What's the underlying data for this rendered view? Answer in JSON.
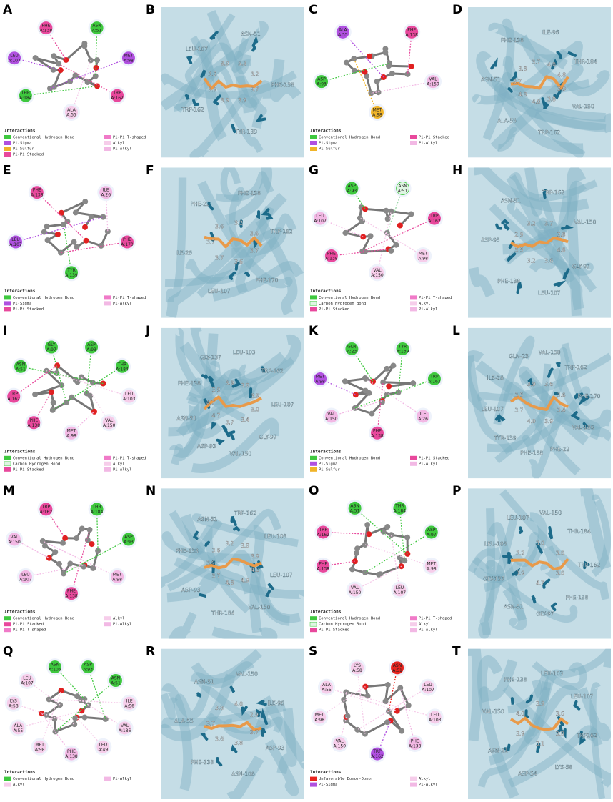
{
  "panels": [
    {
      "letter": "A",
      "residues": [
        {
          "name": "ASN",
          "chain": "A:51",
          "color": "#3ec83e"
        },
        {
          "name": "MET",
          "chain": "A:98",
          "color": "#b050e0"
        },
        {
          "name": "TRP",
          "chain": "A:162",
          "color": "#e8489c"
        },
        {
          "name": "ALA",
          "chain": "A:55",
          "color": "#f6cdea"
        },
        {
          "name": "THR",
          "chain": "A:184",
          "color": "#3ec83e"
        },
        {
          "name": "LEU",
          "chain": "A:107",
          "color": "#b050e0"
        },
        {
          "name": "PHE",
          "chain": "A:138",
          "color": "#e8489c"
        }
      ],
      "legend_title": "Interactions",
      "interactions": [
        {
          "label": "Conventional Hydrogen Bond",
          "color": "#3ec83e"
        },
        {
          "label": "Pi-Sigma",
          "color": "#b050e0"
        },
        {
          "label": "Pi-Sulfur",
          "color": "#f0b428"
        },
        {
          "label": "Pi-Pi Stacked",
          "color": "#e8489c"
        },
        {
          "label": "Pi-Pi T-shaped",
          "color": "#f07ac8"
        },
        {
          "label": "Alkyl",
          "color": "#f6cdea"
        },
        {
          "label": "Pi-Alkyl",
          "color": "#f2b8e4"
        }
      ]
    },
    {
      "letter": "B",
      "residue_labels": [
        "ASN-51",
        "PHE-138",
        "TYR-139",
        "TRP-162",
        "LEU-107"
      ],
      "distances": [
        "3.7",
        "3.9",
        "3.9",
        "3.9",
        "3.7",
        "3.9",
        "5.3",
        "3.2"
      ]
    },
    {
      "letter": "C",
      "residues": [
        {
          "name": "PHE",
          "chain": "A:138",
          "color": "#e8489c"
        },
        {
          "name": "VAL",
          "chain": "A:150",
          "color": "#f2b8e4"
        },
        {
          "name": "MET",
          "chain": "A:98",
          "color": "#f0b428"
        },
        {
          "name": "ASP",
          "chain": "A:93",
          "color": "#3ec83e"
        },
        {
          "name": "ALA",
          "chain": "A:55",
          "color": "#b050e0"
        }
      ],
      "legend_title": "Interactions",
      "interactions": [
        {
          "label": "Conventional Hydrogen Bond",
          "color": "#3ec83e"
        },
        {
          "label": "Pi-Sigma",
          "color": "#b050e0"
        },
        {
          "label": "Pi-Sulfur",
          "color": "#f0b428"
        },
        {
          "label": "Pi-Pi Stacked",
          "color": "#e8489c"
        },
        {
          "label": "Pi-Alkyl",
          "color": "#f2b8e4"
        }
      ]
    },
    {
      "letter": "D",
      "residue_labels": [
        "ILE-96",
        "THR-184",
        "VAL-150",
        "TRP-162",
        "ALA-55",
        "ASN-51",
        "PHE-138"
      ],
      "distances": [
        "3.9",
        "3.8",
        "4.0",
        "4.8",
        "3.7",
        "3.8",
        "3.7",
        "4.0",
        "4.8"
      ]
    },
    {
      "letter": "E",
      "residues": [
        {
          "name": "ILE",
          "chain": "A:26",
          "color": "#f2b8e4"
        },
        {
          "name": "PHE",
          "chain": "A:170",
          "color": "#e8489c"
        },
        {
          "name": "TYR",
          "chain": "A:139",
          "color": "#3ec83e"
        },
        {
          "name": "LEU",
          "chain": "A:107",
          "color": "#b050e0"
        },
        {
          "name": "PHE",
          "chain": "A:138",
          "color": "#e8489c"
        }
      ],
      "legend_title": "Interactions",
      "interactions": [
        {
          "label": "Conventional Hydrogen Bond",
          "color": "#3ec83e"
        },
        {
          "label": "Pi-Sigma",
          "color": "#b050e0"
        },
        {
          "label": "Pi-Pi Stacked",
          "color": "#e8489c"
        },
        {
          "label": "Pi-Pi T-shaped",
          "color": "#f07ac8"
        },
        {
          "label": "Pi-Alkyl",
          "color": "#f2b8e4"
        }
      ]
    },
    {
      "letter": "F",
      "residue_labels": [
        "PHE-138",
        "TRP-162",
        "PHE-170",
        "LEU-107",
        "ILE-26",
        "PHE-22"
      ],
      "distances": [
        "3.7",
        "3.6",
        "3.7",
        "3.7",
        "3.6",
        "3.2",
        "3.6"
      ]
    },
    {
      "letter": "G",
      "residues": [
        {
          "name": "ASN",
          "chain": "A:51",
          "color": "#dff5e3"
        },
        {
          "name": "TRP",
          "chain": "A:162",
          "color": "#e8489c"
        },
        {
          "name": "MET",
          "chain": "A:98",
          "color": "#f6cdea"
        },
        {
          "name": "VAL",
          "chain": "A:150",
          "color": "#f6cdea"
        },
        {
          "name": "PHE",
          "chain": "A:138",
          "color": "#e8489c"
        },
        {
          "name": "LEU",
          "chain": "A:107",
          "color": "#f2b8e4"
        },
        {
          "name": "ASP",
          "chain": "A:93",
          "color": "#3ec83e"
        }
      ],
      "legend_title": "Interactions",
      "interactions": [
        {
          "label": "Conventional Hydrogen Bond",
          "color": "#3ec83e"
        },
        {
          "label": "Carbon Hydrogen Bond",
          "color": "#dff5e3"
        },
        {
          "label": "Pi-Pi Stacked",
          "color": "#e8489c"
        },
        {
          "label": "Pi-Pi T-shaped",
          "color": "#f07ac8"
        },
        {
          "label": "Alkyl",
          "color": "#f6cdea"
        },
        {
          "label": "Pi-Alkyl",
          "color": "#f2b8e4"
        }
      ]
    },
    {
      "letter": "H",
      "residue_labels": [
        "TRP-162",
        "VAL-150",
        "GLY-97",
        "LEU-107",
        "PHE-138",
        "ASP-93",
        "ASN-51"
      ],
      "distances": [
        "4.8",
        "3.6",
        "3.2",
        "3.5",
        "2.9",
        "3.2",
        "3.7",
        "3.8"
      ]
    },
    {
      "letter": "I",
      "residues": [
        {
          "name": "ASP",
          "chain": "A:93",
          "color": "#3ec83e"
        },
        {
          "name": "THR",
          "chain": "A:184",
          "color": "#3ec83e"
        },
        {
          "name": "LEU",
          "chain": "A:103",
          "color": "#f6cdea"
        },
        {
          "name": "VAL",
          "chain": "A:150",
          "color": "#f6cdea"
        },
        {
          "name": "MET",
          "chain": "A:98",
          "color": "#f2b8e4"
        },
        {
          "name": "PHE",
          "chain": "A:138",
          "color": "#e8489c"
        },
        {
          "name": "TRP",
          "chain": "A:162",
          "color": "#e8489c"
        },
        {
          "name": "ASN",
          "chain": "A:51",
          "color": "#3ec83e"
        },
        {
          "name": "GLY",
          "chain": "A:97",
          "color": "#3ec83e"
        }
      ],
      "legend_title": "Interactions",
      "interactions": [
        {
          "label": "Conventional Hydrogen Bond",
          "color": "#3ec83e"
        },
        {
          "label": "Carbon Hydrogen Bond",
          "color": "#dff5e3"
        },
        {
          "label": "Pi-Pi Stacked",
          "color": "#e8489c"
        },
        {
          "label": "Pi-Pi T-shaped",
          "color": "#f07ac8"
        },
        {
          "label": "Alkyl",
          "color": "#f6cdea"
        },
        {
          "label": "Pi-Alkyl",
          "color": "#f2b8e4"
        }
      ]
    },
    {
      "letter": "J",
      "residue_labels": [
        "LEU-103",
        "TRP-162",
        "LEU-107",
        "GLY-97",
        "VAL-150",
        "ASP-93",
        "ASN-51",
        "PHE-138",
        "GLY-137"
      ],
      "distances": [
        "3.0",
        "3.4",
        "3.7",
        "4.7",
        "4.7",
        "3.9",
        "3.9",
        "3.8",
        "3.9"
      ]
    },
    {
      "letter": "K",
      "residues": [
        {
          "name": "TYR",
          "chain": "A:139",
          "color": "#3ec83e"
        },
        {
          "name": "TRP",
          "chain": "A:162",
          "color": "#3ec83e"
        },
        {
          "name": "ILE",
          "chain": "A:26",
          "color": "#f2b8e4"
        },
        {
          "name": "PHE",
          "chain": "A:138",
          "color": "#e8489c"
        },
        {
          "name": "VAL",
          "chain": "A:150",
          "color": "#f2b8e4"
        },
        {
          "name": "MET",
          "chain": "A:98",
          "color": "#b050e0"
        },
        {
          "name": "GLN",
          "chain": "A:23",
          "color": "#3ec83e"
        }
      ],
      "legend_title": "Interactions",
      "interactions": [
        {
          "label": "Conventional Hydrogen Bond",
          "color": "#3ec83e"
        },
        {
          "label": "Pi-Sigma",
          "color": "#b050e0"
        },
        {
          "label": "Pi-Sulfur",
          "color": "#f0b428"
        },
        {
          "label": "Pi-Pi Stacked",
          "color": "#e8489c"
        },
        {
          "label": "Pi-Alkyl",
          "color": "#f2b8e4"
        }
      ]
    },
    {
      "letter": "L",
      "residue_labels": [
        "VAL-150",
        "TRP-162",
        "PHE-170",
        "VAL-186",
        "PHE-22",
        "PHE-138",
        "TYR-139",
        "LEU-107",
        "ILE-26",
        "GLN-23"
      ],
      "distances": [
        "3.4",
        "3.9",
        "4.0",
        "3.7",
        "3.5",
        "3.9",
        "3.6",
        "3.6"
      ]
    },
    {
      "letter": "M",
      "residues": [
        {
          "name": "THR",
          "chain": "A:184",
          "color": "#3ec83e"
        },
        {
          "name": "ASP",
          "chain": "A:93",
          "color": "#3ec83e"
        },
        {
          "name": "MET",
          "chain": "A:98",
          "color": "#f2b8e4"
        },
        {
          "name": "PHE",
          "chain": "A:138",
          "color": "#e8489c"
        },
        {
          "name": "LEU",
          "chain": "A:107",
          "color": "#f2b8e4"
        },
        {
          "name": "VAL",
          "chain": "A:150",
          "color": "#f2b8e4"
        },
        {
          "name": "TRP",
          "chain": "A:162",
          "color": "#e8489c"
        }
      ],
      "legend_title": "Interactions",
      "interactions": [
        {
          "label": "Conventional Hydrogen Bond",
          "color": "#3ec83e"
        },
        {
          "label": "Pi-Pi Stacked",
          "color": "#e8489c"
        },
        {
          "label": "Pi-Pi T-shaped",
          "color": "#f07ac8"
        },
        {
          "label": "Alkyl",
          "color": "#f6cdea"
        },
        {
          "label": "Pi-Alkyl",
          "color": "#f2b8e4"
        }
      ]
    },
    {
      "letter": "N",
      "residue_labels": [
        "TRP-162",
        "LEU-103",
        "LEU-107",
        "VAL-150",
        "THR-184",
        "ASP-93",
        "PHE-138",
        "ASN-51"
      ],
      "distances": [
        "4.0",
        "4.9",
        "4.8",
        "3.7",
        "3.9",
        "3.6",
        "3.2",
        "3.8",
        "3.9"
      ]
    },
    {
      "letter": "O",
      "residues": [
        {
          "name": "THR",
          "chain": "A:184",
          "color": "#3ec83e"
        },
        {
          "name": "ASP",
          "chain": "A:97",
          "color": "#3ec83e"
        },
        {
          "name": "MET",
          "chain": "A:98",
          "color": "#f6cdea"
        },
        {
          "name": "LEU",
          "chain": "A:107",
          "color": "#f6cdea"
        },
        {
          "name": "VAL",
          "chain": "A:150",
          "color": "#f6cdea"
        },
        {
          "name": "PHE",
          "chain": "A:138",
          "color": "#e8489c"
        },
        {
          "name": "TRP",
          "chain": "A:162",
          "color": "#e8489c"
        },
        {
          "name": "ASN",
          "chain": "A:51",
          "color": "#3ec83e"
        }
      ],
      "legend_title": "Interactions",
      "interactions": [
        {
          "label": "Conventional Hydrogen Bond",
          "color": "#3ec83e"
        },
        {
          "label": "Carbon Hydrogen Bond",
          "color": "#dff5e3"
        },
        {
          "label": "Pi-Pi Stacked",
          "color": "#e8489c"
        },
        {
          "label": "Pi-Pi T-shaped",
          "color": "#f07ac8"
        },
        {
          "label": "Alkyl",
          "color": "#f6cdea"
        },
        {
          "label": "Pi-Alkyl",
          "color": "#f2b8e4"
        }
      ]
    },
    {
      "letter": "P",
      "residue_labels": [
        "VAL-150",
        "THR-184",
        "TRP-162",
        "PHE-138",
        "GLY-97",
        "ASN-51",
        "GLY-137",
        "LEU-103",
        "LEU-107"
      ],
      "distances": [
        "3.6",
        "4.7",
        "3.9",
        "3.2",
        "3.0",
        "3.6"
      ]
    },
    {
      "letter": "Q",
      "residues": [
        {
          "name": "ASP",
          "chain": "A:93",
          "color": "#3ec83e"
        },
        {
          "name": "ASN",
          "chain": "A:51",
          "color": "#3ec83e"
        },
        {
          "name": "ILE",
          "chain": "A:96",
          "color": "#f6cdea"
        },
        {
          "name": "VAL",
          "chain": "A:186",
          "color": "#f6cdea"
        },
        {
          "name": "LEU",
          "chain": "A:49",
          "color": "#f6cdea"
        },
        {
          "name": "PHE",
          "chain": "A:138",
          "color": "#f2b8e4"
        },
        {
          "name": "MET",
          "chain": "A:98",
          "color": "#f6cdea"
        },
        {
          "name": "ALA",
          "chain": "A:55",
          "color": "#f6cdea"
        },
        {
          "name": "LYS",
          "chain": "A:58",
          "color": "#f6cdea"
        },
        {
          "name": "LEU",
          "chain": "A:107",
          "color": "#f6cdea"
        },
        {
          "name": "ASN",
          "chain": "A:106",
          "color": "#3ec83e"
        }
      ],
      "legend_title": "Interactions",
      "interactions": [
        {
          "label": "Conventional Hydrogen Bond",
          "color": "#3ec83e"
        },
        {
          "label": "Alkyl",
          "color": "#f6cdea"
        },
        {
          "label": "Pi-Alkyl",
          "color": "#f2b8e4"
        }
      ]
    },
    {
      "letter": "R",
      "residue_labels": [
        "VAL-150",
        "ILE-96",
        "ASP-93",
        "ASN-106",
        "PHE-138",
        "ALA-55",
        "ASN-51"
      ],
      "distances": [
        "3.7",
        "3.8",
        "3.6",
        "3.7",
        "3.8",
        "4.0",
        "2.9"
      ]
    },
    {
      "letter": "S",
      "residues": [
        {
          "name": "ASN",
          "chain": "A:51",
          "color": "#e8231e"
        },
        {
          "name": "LEU",
          "chain": "A:107",
          "color": "#f6cdea"
        },
        {
          "name": "LEU",
          "chain": "A:103",
          "color": "#f6cdea"
        },
        {
          "name": "PHE",
          "chain": "A:138",
          "color": "#f2b8e4"
        },
        {
          "name": "TRP",
          "chain": "A:162",
          "color": "#b050e0"
        },
        {
          "name": "VAL",
          "chain": "A:150",
          "color": "#f6cdea"
        },
        {
          "name": "MET",
          "chain": "A:98",
          "color": "#f6cdea"
        },
        {
          "name": "ALA",
          "chain": "A:55",
          "color": "#f6cdea"
        },
        {
          "name": "LYS",
          "chain": "A:58",
          "color": "#f6cdea"
        }
      ],
      "legend_title": "Interactions",
      "interactions": [
        {
          "label": "Unfavorable Donor-Donor",
          "color": "#e8231e"
        },
        {
          "label": "Pi-Sigma",
          "color": "#b050e0"
        },
        {
          "label": "Alkyl",
          "color": "#f6cdea"
        },
        {
          "label": "Pi-Alkyl",
          "color": "#f2b8e4"
        }
      ]
    },
    {
      "letter": "T",
      "residue_labels": [
        "LEU-103",
        "LEU-107",
        "TRP162",
        "LYS-58",
        "ASP-54",
        "ASN-51",
        "VAL-150",
        "PHE-138"
      ],
      "distances": [
        "3.8",
        "3.1",
        "3.9",
        "4.0",
        "3.9",
        "3.6"
      ]
    }
  ]
}
